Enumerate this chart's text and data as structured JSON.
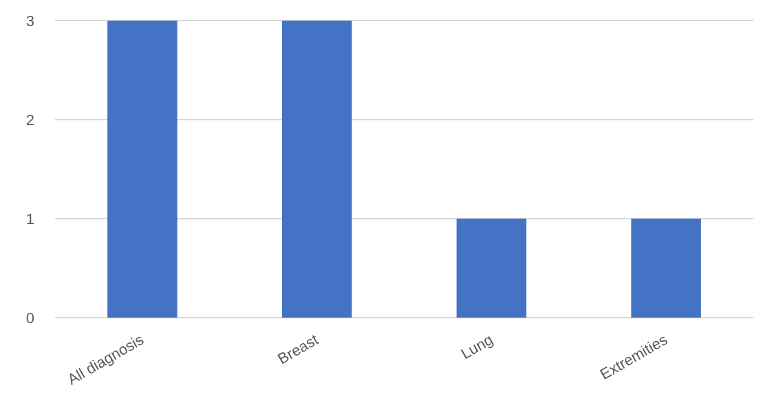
{
  "chart_data": {
    "type": "bar",
    "categories": [
      "All diagnosis",
      "Breast",
      "Lung",
      "Extremities"
    ],
    "values": [
      3,
      3,
      1,
      1
    ],
    "color": "#4472c4",
    "ylim": [
      0,
      3
    ],
    "yticks": [
      0,
      1,
      2,
      3
    ],
    "grid": "y"
  }
}
